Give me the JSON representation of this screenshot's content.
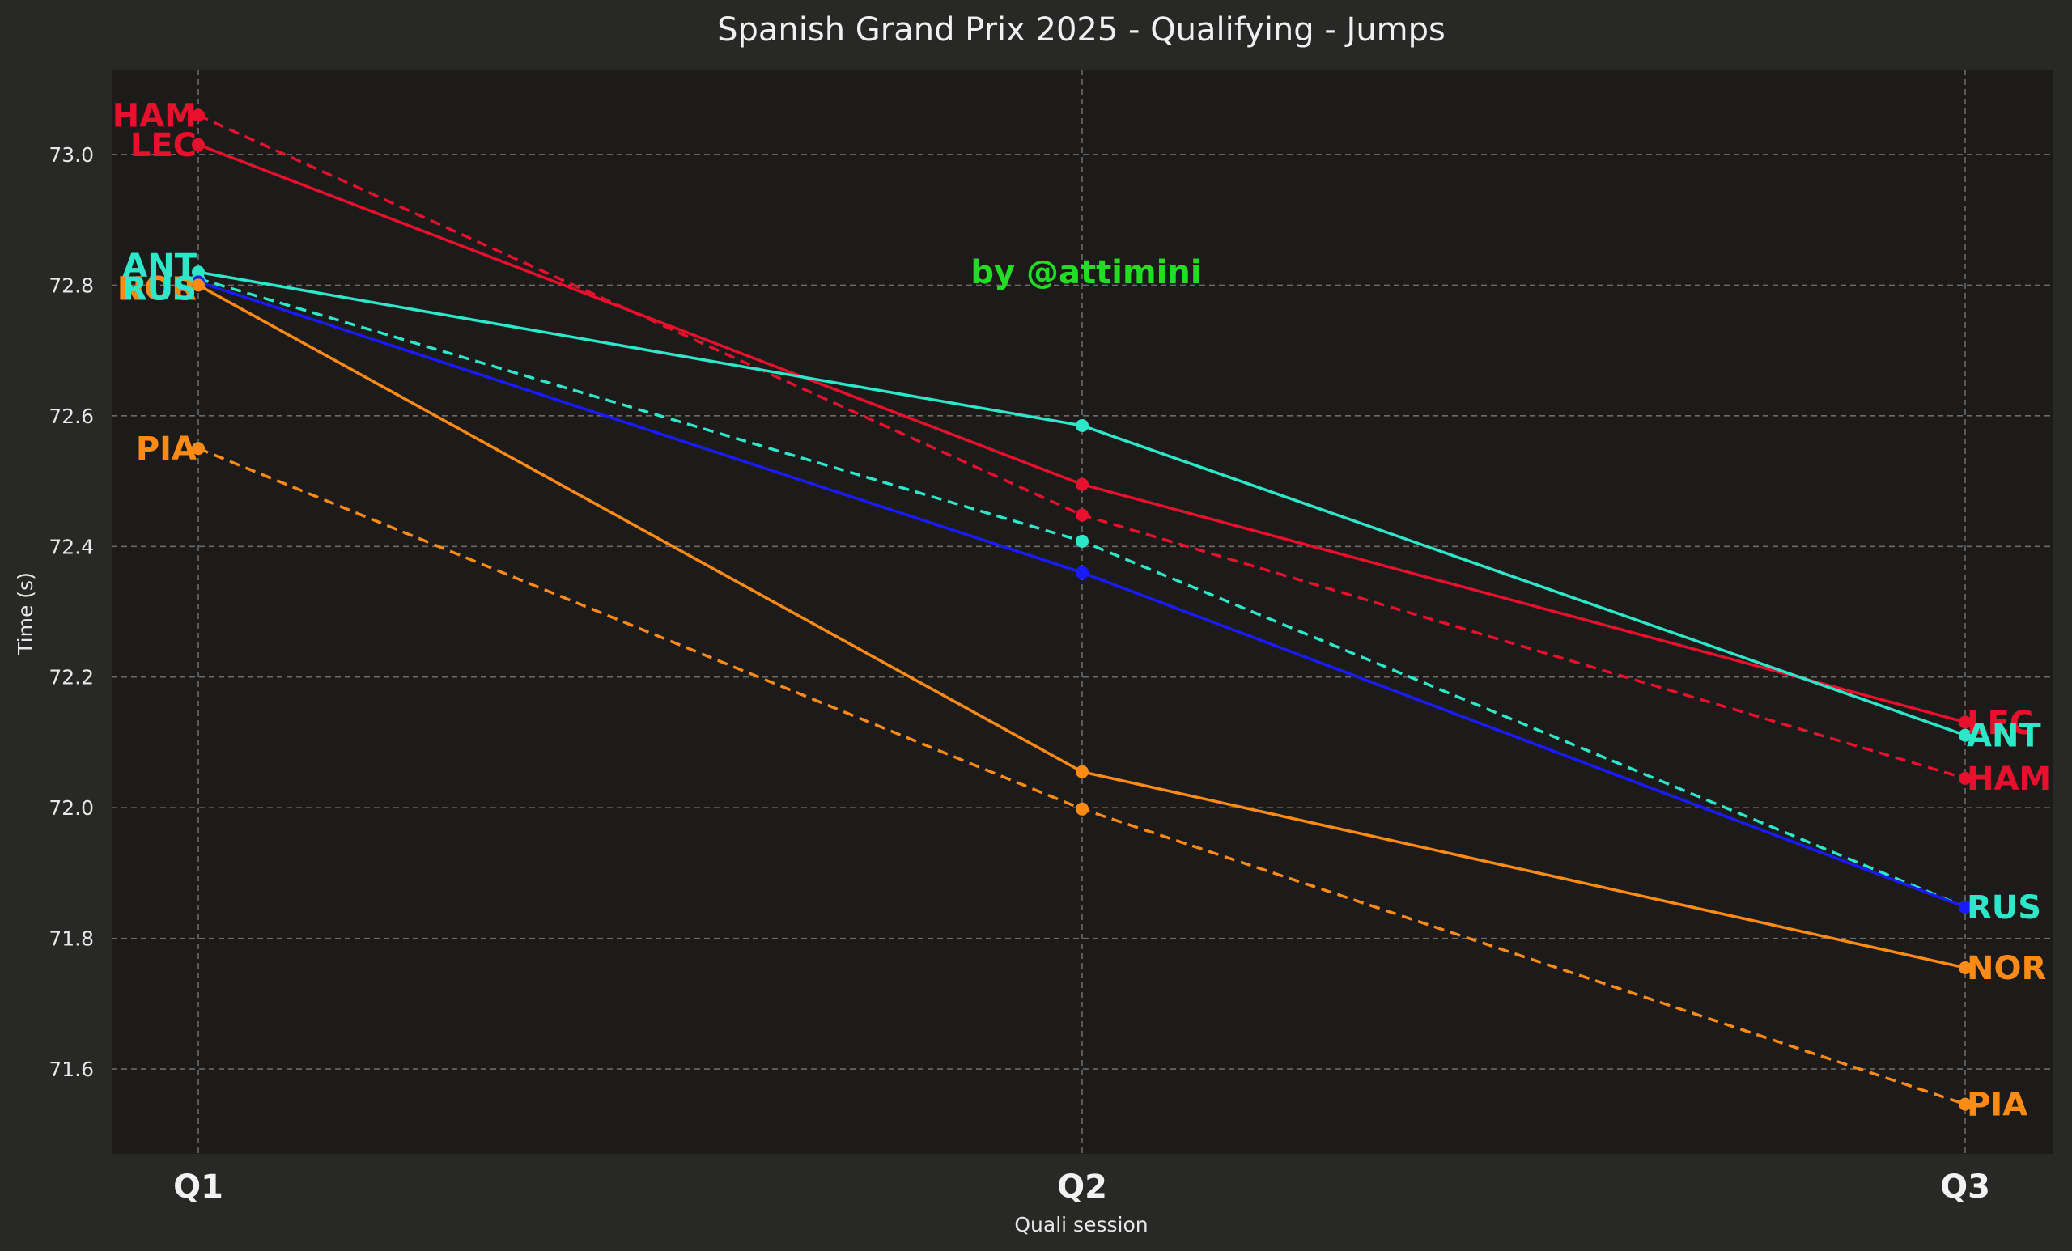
{
  "chart_data": {
    "type": "line",
    "title": "Spanish Grand Prix 2025 - Qualifying - Jumps",
    "xlabel": "Quali session",
    "ylabel": "Time (s)",
    "watermark": "by @attimini",
    "categories": [
      "Q1",
      "Q2",
      "Q3"
    ],
    "ylim": [
      71.47,
      73.13
    ],
    "yticks": [
      71.6,
      71.8,
      72.0,
      72.2,
      72.4,
      72.6,
      72.8,
      73.0
    ],
    "grid": true,
    "series": [
      {
        "name": "HAM",
        "color": "#e8102d",
        "style": "dashed",
        "values": [
          73.06,
          72.448,
          72.045
        ]
      },
      {
        "name": "LEC",
        "color": "#e8102d",
        "style": "solid",
        "values": [
          73.015,
          72.495,
          72.131
        ]
      },
      {
        "name": "ANT",
        "color": "#2ee6c8",
        "style": "solid",
        "values": [
          72.82,
          72.585,
          72.111
        ]
      },
      {
        "name": "RUS",
        "color": "#2ee6c8",
        "style": "dashed",
        "values": [
          72.81,
          72.408,
          71.848
        ]
      },
      {
        "name": "RUS",
        "color": "#1a1aff",
        "style": "solid",
        "values": [
          72.805,
          72.36,
          71.848
        ]
      },
      {
        "name": "NOR",
        "color": "#ff8a14",
        "style": "solid",
        "values": [
          72.8,
          72.055,
          71.755
        ]
      },
      {
        "name": "PIA",
        "color": "#ff8a14",
        "style": "dashed",
        "values": [
          72.55,
          71.998,
          71.546
        ]
      }
    ],
    "labels": [
      {
        "text": "HAM",
        "category": "Q1",
        "value": 73.06,
        "color": "#e8102d",
        "side": "left"
      },
      {
        "text": "LEC",
        "category": "Q1",
        "value": 73.015,
        "color": "#e8102d",
        "side": "left"
      },
      {
        "text": "ANT",
        "category": "Q1",
        "value": 72.83,
        "color": "#2ee6c8",
        "side": "left"
      },
      {
        "text": "NOR",
        "category": "Q1",
        "value": 72.795,
        "color": "#ff8a14",
        "side": "left"
      },
      {
        "text": "RUS",
        "category": "Q1",
        "value": 72.795,
        "color": "#2ee6c8",
        "side": "left"
      },
      {
        "text": "PIA",
        "category": "Q1",
        "value": 72.55,
        "color": "#ff8a14",
        "side": "left"
      },
      {
        "text": "LEC",
        "category": "Q3",
        "value": 72.13,
        "color": "#e8102d",
        "side": "right"
      },
      {
        "text": "ANT",
        "category": "Q3",
        "value": 72.111,
        "color": "#2ee6c8",
        "side": "right"
      },
      {
        "text": "HAM",
        "category": "Q3",
        "value": 72.045,
        "color": "#e8102d",
        "side": "right"
      },
      {
        "text": "RUS",
        "category": "Q3",
        "value": 71.848,
        "color": "#2ee6c8",
        "side": "right"
      },
      {
        "text": "NOR",
        "category": "Q3",
        "value": 71.755,
        "color": "#ff8a14",
        "side": "right"
      },
      {
        "text": "PIA",
        "category": "Q3",
        "value": 71.546,
        "color": "#ff8a14",
        "side": "right"
      }
    ]
  }
}
